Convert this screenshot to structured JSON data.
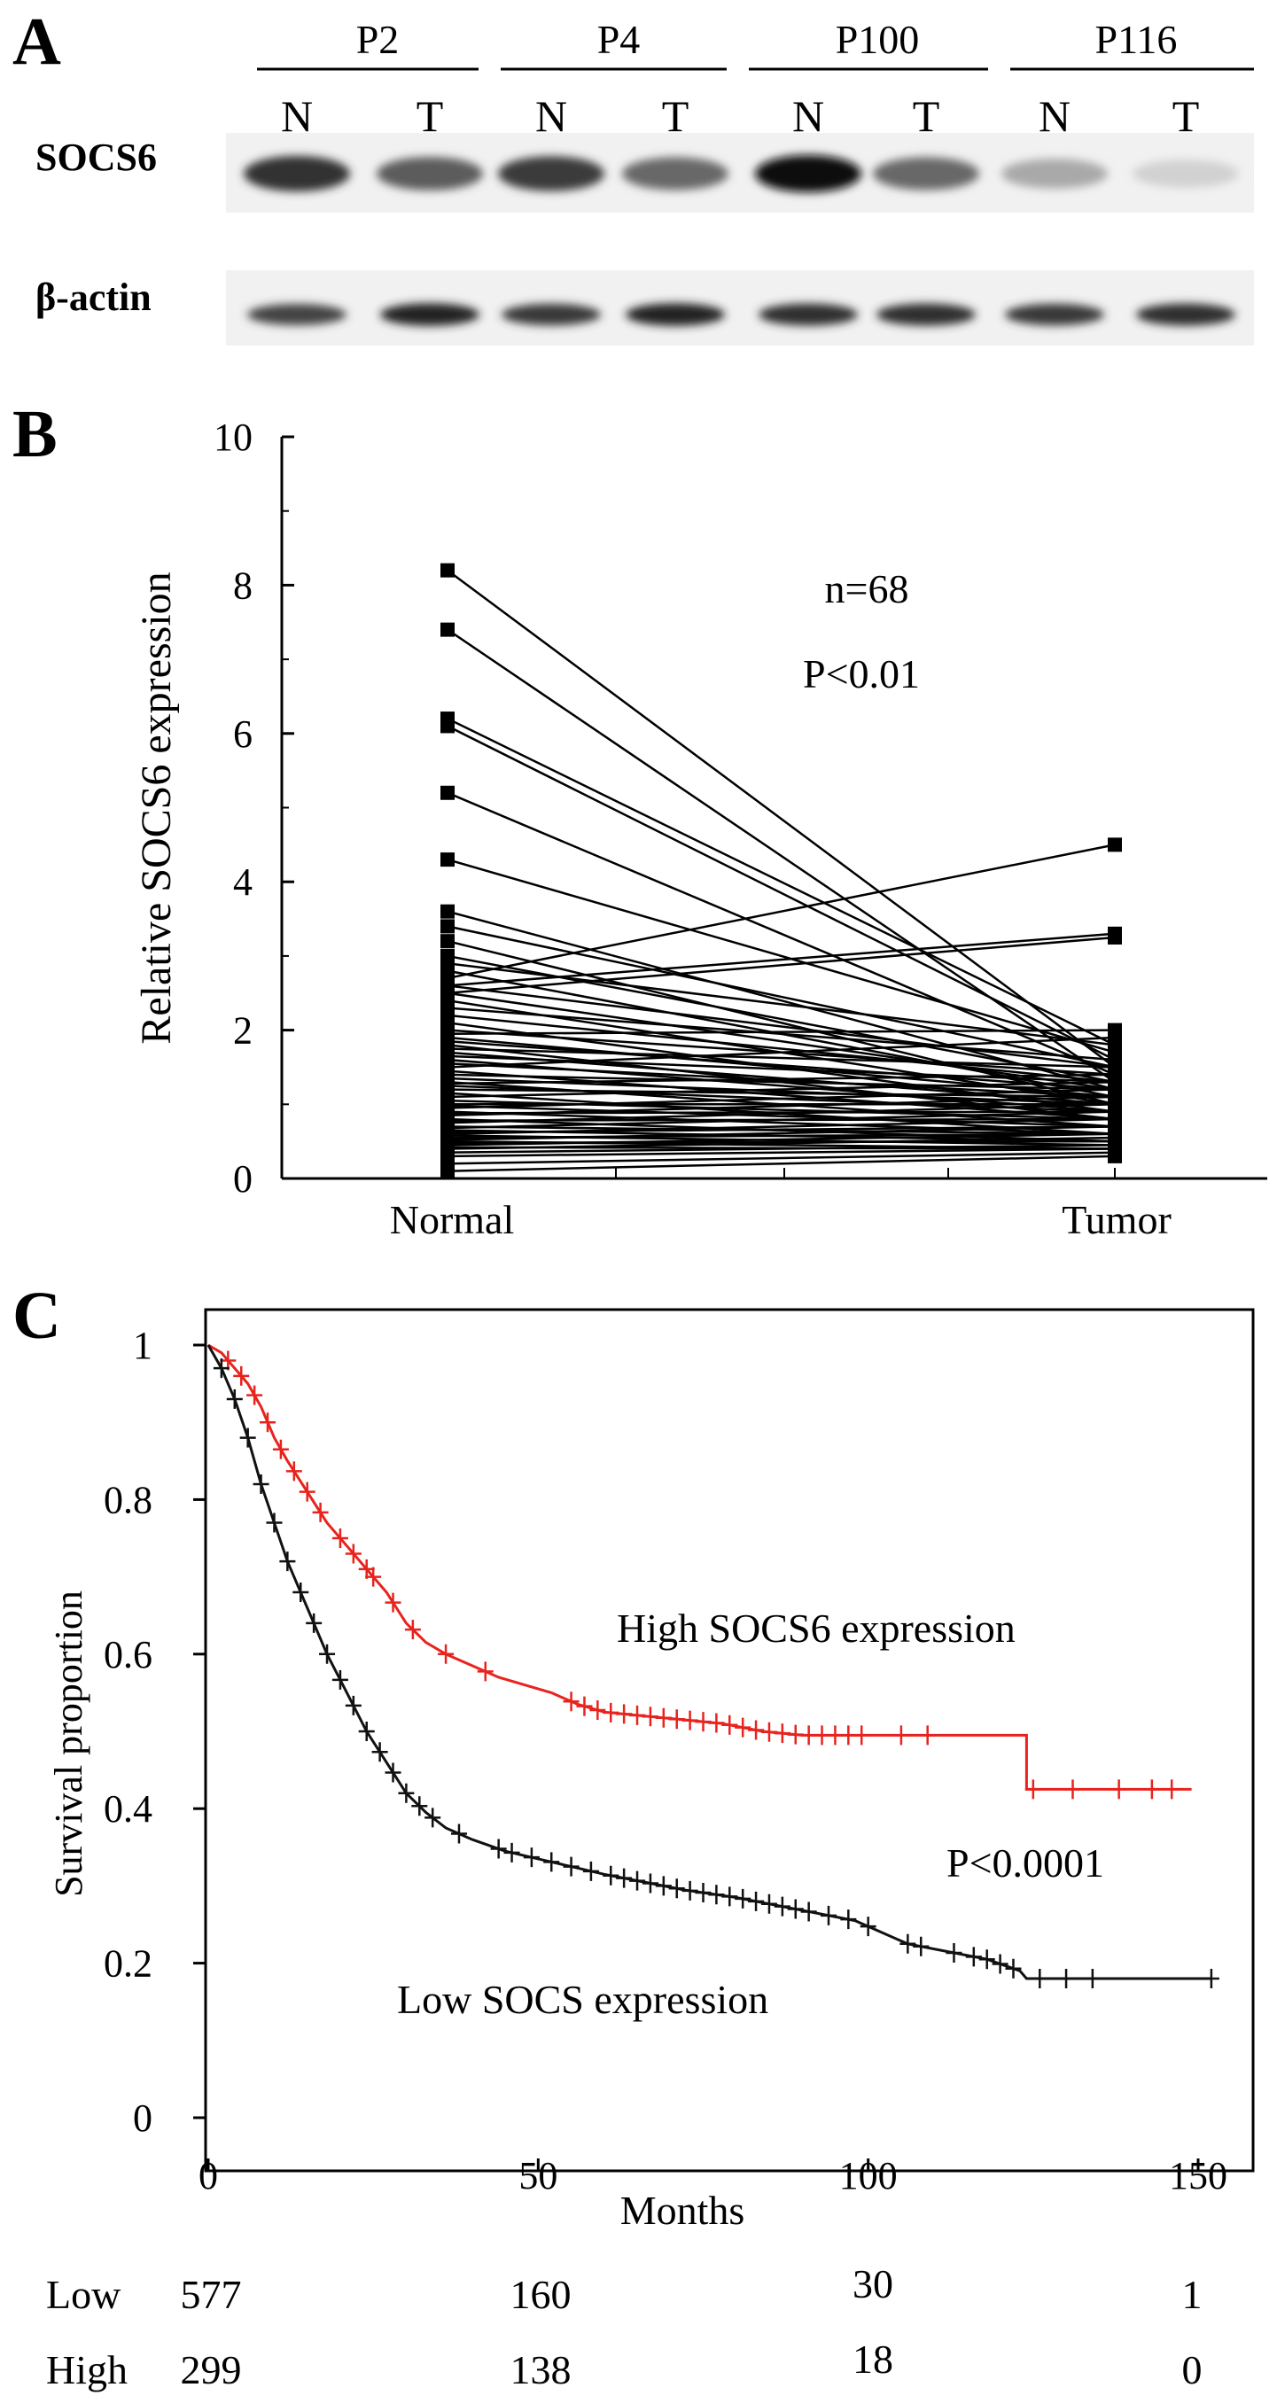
{
  "panel_a": {
    "letter": "A",
    "patients": [
      "P2",
      "P4",
      "P100",
      "P116"
    ],
    "lane_labels": [
      "N",
      "T",
      "N",
      "T",
      "N",
      "T",
      "N",
      "T"
    ],
    "row_labels": [
      "SOCS6",
      "β-actin"
    ],
    "socs6_band_intensity": [
      0.85,
      0.65,
      0.8,
      0.6,
      1.0,
      0.6,
      0.3,
      0.12
    ],
    "actin_band_intensity": [
      0.8,
      0.95,
      0.85,
      0.95,
      0.9,
      0.9,
      0.85,
      0.9
    ]
  },
  "panel_b": {
    "letter": "B",
    "annotation_n": "n=68",
    "annotation_p": "P<0.01",
    "chart_data": {
      "type": "line",
      "categories": [
        "Normal",
        "Tumor"
      ],
      "xlabel": "",
      "ylabel": "Relative SOCS6 expression",
      "ylim": [
        0,
        10
      ],
      "yticks": [
        0,
        2,
        4,
        6,
        8,
        10
      ],
      "n": 68,
      "pairs": [
        [
          8.2,
          1.5
        ],
        [
          7.4,
          1.3
        ],
        [
          6.2,
          1.8
        ],
        [
          6.1,
          1.6
        ],
        [
          5.2,
          1.4
        ],
        [
          4.3,
          1.7
        ],
        [
          3.6,
          1.2
        ],
        [
          3.4,
          1.5
        ],
        [
          3.2,
          1.0
        ],
        [
          3.0,
          1.3
        ],
        [
          2.9,
          1.8
        ],
        [
          2.8,
          1.1
        ],
        [
          2.7,
          4.5
        ],
        [
          2.6,
          3.3
        ],
        [
          2.6,
          1.5
        ],
        [
          2.5,
          1.2
        ],
        [
          2.5,
          3.25
        ],
        [
          2.4,
          1.0
        ],
        [
          2.3,
          1.6
        ],
        [
          2.2,
          1.3
        ],
        [
          2.1,
          0.9
        ],
        [
          2.0,
          1.4
        ],
        [
          1.95,
          2.0
        ],
        [
          1.9,
          1.1
        ],
        [
          1.85,
          1.2
        ],
        [
          1.8,
          0.8
        ],
        [
          1.75,
          1.5
        ],
        [
          1.7,
          1.0
        ],
        [
          1.65,
          1.3
        ],
        [
          1.6,
          0.9
        ],
        [
          1.55,
          1.1
        ],
        [
          1.5,
          1.9
        ],
        [
          1.45,
          0.8
        ],
        [
          1.4,
          1.2
        ],
        [
          1.35,
          1.0
        ],
        [
          1.3,
          0.7
        ],
        [
          1.28,
          1.4
        ],
        [
          1.25,
          0.9
        ],
        [
          1.2,
          1.1
        ],
        [
          1.15,
          0.6
        ],
        [
          1.1,
          1.3
        ],
        [
          1.05,
          0.8
        ],
        [
          1.0,
          1.0
        ],
        [
          0.98,
          0.7
        ],
        [
          0.95,
          1.2
        ],
        [
          0.9,
          0.6
        ],
        [
          0.88,
          0.9
        ],
        [
          0.85,
          1.1
        ],
        [
          0.8,
          0.5
        ],
        [
          0.78,
          0.8
        ],
        [
          0.75,
          1.0
        ],
        [
          0.7,
          0.6
        ],
        [
          0.68,
          0.9
        ],
        [
          0.65,
          0.5
        ],
        [
          0.62,
          0.7
        ],
        [
          0.6,
          0.8
        ],
        [
          0.58,
          0.45
        ],
        [
          0.55,
          0.6
        ],
        [
          0.52,
          0.7
        ],
        [
          0.5,
          0.4
        ],
        [
          0.48,
          0.5
        ],
        [
          0.45,
          0.6
        ],
        [
          0.42,
          0.4
        ],
        [
          0.4,
          0.55
        ],
        [
          0.35,
          0.45
        ],
        [
          0.3,
          0.4
        ],
        [
          0.2,
          0.35
        ],
        [
          0.1,
          0.3
        ]
      ]
    }
  },
  "panel_c": {
    "letter": "C",
    "high_label": "High SOCS6 expression",
    "low_label": "Low SOCS expression",
    "p_label": "P<0.0001",
    "chart_data": {
      "type": "line",
      "xlabel": "Months",
      "ylabel": "Survival proportion",
      "xlim": [
        0,
        160
      ],
      "ylim": [
        0,
        1
      ],
      "xticks": [
        0,
        50,
        100,
        150
      ],
      "yticks": [
        0,
        0.2,
        0.4,
        0.6,
        0.8,
        1
      ],
      "ytick_labels": [
        "0",
        "0.2",
        "0.4",
        "0.6",
        "0.8",
        "1"
      ],
      "series": [
        {
          "color": "#e8231d",
          "points": [
            [
              0,
              1.0
            ],
            [
              2,
              0.99
            ],
            [
              4,
              0.97
            ],
            [
              6,
              0.95
            ],
            [
              8,
              0.92
            ],
            [
              10,
              0.88
            ],
            [
              12,
              0.85
            ],
            [
              15,
              0.81
            ],
            [
              18,
              0.77
            ],
            [
              21,
              0.74
            ],
            [
              24,
              0.71
            ],
            [
              27,
              0.68
            ],
            [
              30,
              0.64
            ],
            [
              33,
              0.615
            ],
            [
              36,
              0.6
            ],
            [
              40,
              0.585
            ],
            [
              44,
              0.57
            ],
            [
              48,
              0.56
            ],
            [
              52,
              0.55
            ],
            [
              56,
              0.535
            ],
            [
              60,
              0.525
            ],
            [
              66,
              0.52
            ],
            [
              72,
              0.515
            ],
            [
              78,
              0.51
            ],
            [
              84,
              0.5
            ],
            [
              90,
              0.495
            ],
            [
              100,
              0.495
            ],
            [
              110,
              0.495
            ],
            [
              124,
              0.495
            ],
            [
              124,
              0.425
            ],
            [
              149,
              0.425
            ]
          ],
          "censor_x": [
            3,
            5,
            7,
            9,
            11,
            13,
            15,
            17,
            20,
            22,
            24,
            25,
            28,
            31,
            36,
            42,
            55,
            57,
            59,
            61,
            63,
            65,
            67,
            69,
            71,
            73,
            75,
            77,
            79,
            81,
            83,
            85,
            87,
            89,
            91,
            93,
            95,
            97,
            99,
            105,
            109,
            125,
            131,
            138,
            143,
            146
          ]
        },
        {
          "color": "#111111",
          "points": [
            [
              0,
              1.0
            ],
            [
              2,
              0.97
            ],
            [
              4,
              0.93
            ],
            [
              6,
              0.88
            ],
            [
              8,
              0.82
            ],
            [
              10,
              0.77
            ],
            [
              12,
              0.72
            ],
            [
              15,
              0.66
            ],
            [
              18,
              0.6
            ],
            [
              21,
              0.55
            ],
            [
              24,
              0.5
            ],
            [
              27,
              0.46
            ],
            [
              30,
              0.42
            ],
            [
              33,
              0.395
            ],
            [
              36,
              0.375
            ],
            [
              40,
              0.36
            ],
            [
              45,
              0.345
            ],
            [
              50,
              0.335
            ],
            [
              55,
              0.325
            ],
            [
              60,
              0.315
            ],
            [
              66,
              0.305
            ],
            [
              72,
              0.295
            ],
            [
              80,
              0.285
            ],
            [
              86,
              0.275
            ],
            [
              92,
              0.265
            ],
            [
              98,
              0.255
            ],
            [
              102,
              0.24
            ],
            [
              106,
              0.225
            ],
            [
              112,
              0.215
            ],
            [
              118,
              0.205
            ],
            [
              123,
              0.19
            ],
            [
              124,
              0.18
            ],
            [
              152,
              0.18
            ]
          ],
          "censor_x": [
            2,
            4,
            6,
            8,
            10,
            12,
            14,
            16,
            18,
            20,
            22,
            24,
            26,
            28,
            30,
            32,
            34,
            38,
            44,
            46,
            49,
            52,
            55,
            58,
            61,
            63,
            65,
            67,
            69,
            71,
            73,
            75,
            77,
            79,
            81,
            83,
            85,
            87,
            89,
            91,
            94,
            97,
            100,
            106,
            108,
            113,
            116,
            118,
            120,
            122,
            126,
            130,
            134,
            152
          ]
        }
      ],
      "risk_table": {
        "rows": [
          {
            "label": "Low",
            "values": [
              "577",
              "160",
              "30",
              "1"
            ]
          },
          {
            "label": "High",
            "values": [
              "299",
              "138",
              "18",
              "0"
            ]
          }
        ]
      }
    }
  }
}
